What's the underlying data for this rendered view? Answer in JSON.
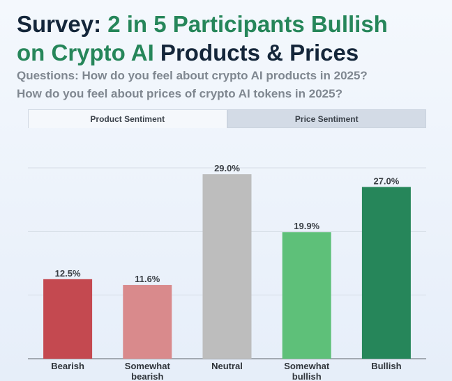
{
  "header": {
    "title_part1": "Survey: ",
    "title_part2": "2 in 5 Participants Bullish",
    "title_part3": "on Crypto AI",
    "title_part4": " Products & Prices",
    "question_1": "Questions: How do you feel about crypto AI products in 2025?",
    "question_2": "How do you feel about prices of crypto AI tokens in 2025?"
  },
  "tabs": [
    {
      "label": "Product Sentiment",
      "active": true
    },
    {
      "label": "Price Sentiment",
      "active": false
    }
  ],
  "colors": {
    "title_dark": "#14263a",
    "title_accent": "#26865a",
    "bearish": "#c44950",
    "somewhat_bearish": "#d98a8c",
    "neutral": "#bdbdbd",
    "somewhat_bullish": "#5ec079",
    "bullish": "#26865a"
  },
  "chart_data": {
    "type": "bar",
    "title": "",
    "xlabel": "",
    "ylabel": "",
    "ylim": [
      0,
      30
    ],
    "grid": true,
    "categories": [
      [
        "Bearish"
      ],
      [
        "Somewhat",
        "bearish"
      ],
      [
        "Neutral"
      ],
      [
        "Somewhat",
        "bullish"
      ],
      [
        "Bullish"
      ]
    ],
    "values": [
      12.5,
      11.6,
      29.0,
      19.9,
      27.0
    ],
    "value_labels": [
      "12.5%",
      "11.6%",
      "29.0%",
      "19.9%",
      "27.0%"
    ],
    "bar_colors": [
      "#c44950",
      "#d98a8c",
      "#bdbdbd",
      "#5ec079",
      "#26865a"
    ]
  }
}
